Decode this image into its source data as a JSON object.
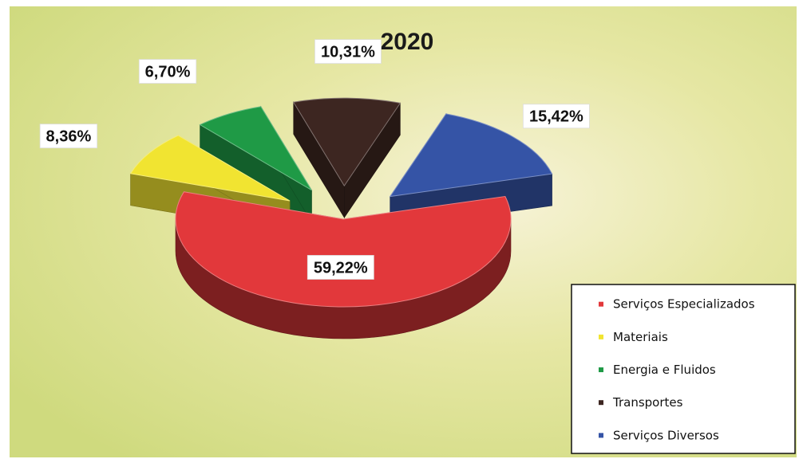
{
  "chart_data": {
    "type": "pie",
    "title": "2020",
    "legend_position": "bottom-right",
    "slices": [
      {
        "name": "Serviços Especializados",
        "value": 59.22,
        "label": "59,22%",
        "color": "#e2383b",
        "exploded": false
      },
      {
        "name": "Materiais",
        "value": 8.36,
        "label": "8,36%",
        "color": "#f1e431",
        "exploded": true
      },
      {
        "name": "Energia e Fluidos",
        "value": 6.7,
        "label": "6,70%",
        "color": "#1f9a46",
        "exploded": true
      },
      {
        "name": "Transportes",
        "value": 10.31,
        "label": "10,31%",
        "color": "#3d2621",
        "exploded": true
      },
      {
        "name": "Serviços Diversos",
        "value": 15.42,
        "label": "15,42%",
        "color": "#3554a6",
        "exploded": true
      }
    ]
  }
}
